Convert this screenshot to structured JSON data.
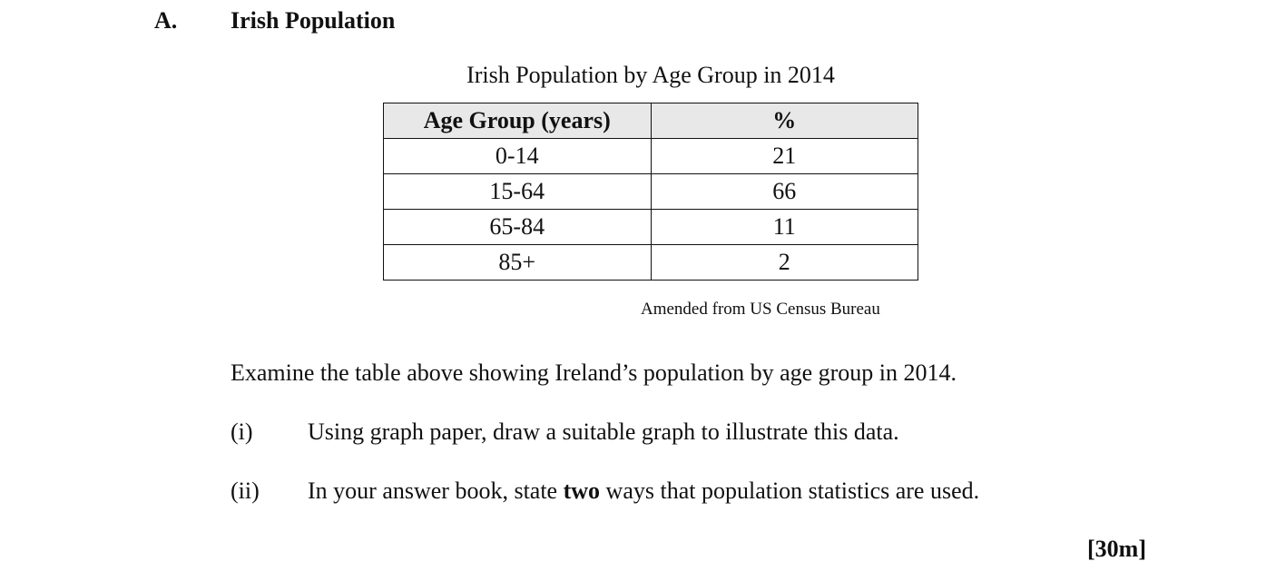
{
  "section": {
    "letter": "A.",
    "title": "Irish Population"
  },
  "table": {
    "caption": "Irish Population by Age Group in 2014",
    "headers": [
      "Age Group (years)",
      "%"
    ],
    "rows": [
      [
        "0-14",
        "21"
      ],
      [
        "15-64",
        "66"
      ],
      [
        "65-84",
        "11"
      ],
      [
        "85+",
        "2"
      ]
    ],
    "source": "Amended from US Census Bureau"
  },
  "instruction": "Examine the table above showing Ireland’s population by age group in 2014.",
  "questions": [
    {
      "number": "(i)",
      "text": "Using graph paper, draw a suitable graph to illustrate this data."
    },
    {
      "number": "(ii)",
      "text_before": "In your answer book, state ",
      "text_bold": "two",
      "text_after": " ways that population statistics are used."
    }
  ],
  "marks": "[30m]",
  "chart_data": {
    "type": "table",
    "title": "Irish Population by Age Group in 2014",
    "columns": [
      "Age Group (years)",
      "%"
    ],
    "categories": [
      "0-14",
      "15-64",
      "65-84",
      "85+"
    ],
    "values": [
      21,
      66,
      11,
      2
    ],
    "source": "Amended from US Census Bureau"
  }
}
